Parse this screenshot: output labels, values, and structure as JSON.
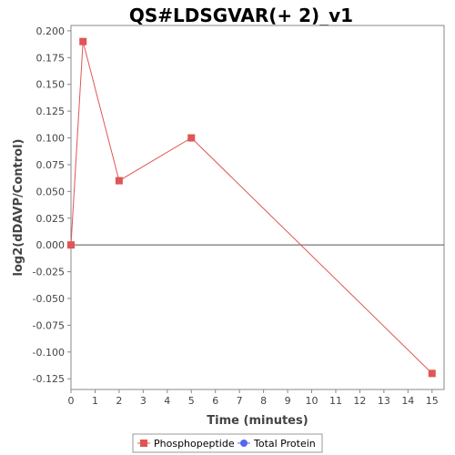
{
  "chart_data": {
    "type": "line",
    "title": "QS#LDSGVAR(+ 2)_v1",
    "xlabel": "Time (minutes)",
    "ylabel": "log2(dDAVP/Control)",
    "xlim": [
      0,
      15.5
    ],
    "ylim": [
      -0.135,
      0.205
    ],
    "xticks": [
      0,
      1,
      2,
      3,
      4,
      5,
      6,
      7,
      8,
      9,
      10,
      11,
      12,
      13,
      14,
      15
    ],
    "yticks": [
      -0.125,
      -0.1,
      -0.075,
      -0.05,
      -0.025,
      0.0,
      0.025,
      0.05,
      0.075,
      0.1,
      0.125,
      0.15,
      0.175,
      0.2
    ],
    "ytick_labels": [
      "-0.125",
      "-0.100",
      "-0.075",
      "-0.050",
      "-0.025",
      "0.000",
      "0.025",
      "0.050",
      "0.075",
      "0.100",
      "0.125",
      "0.150",
      "0.175",
      "0.200"
    ],
    "zero_line": true,
    "grid": false,
    "legend_position": "bottom",
    "series": [
      {
        "name": "Phosphopeptide",
        "color": "#e05555",
        "marker": "square",
        "x": [
          0,
          0.5,
          2,
          5,
          15
        ],
        "y": [
          0.0,
          0.19,
          0.06,
          0.1,
          -0.12
        ]
      },
      {
        "name": "Total Protein",
        "color": "#5566ee",
        "marker": "circle",
        "x": [],
        "y": []
      }
    ]
  }
}
